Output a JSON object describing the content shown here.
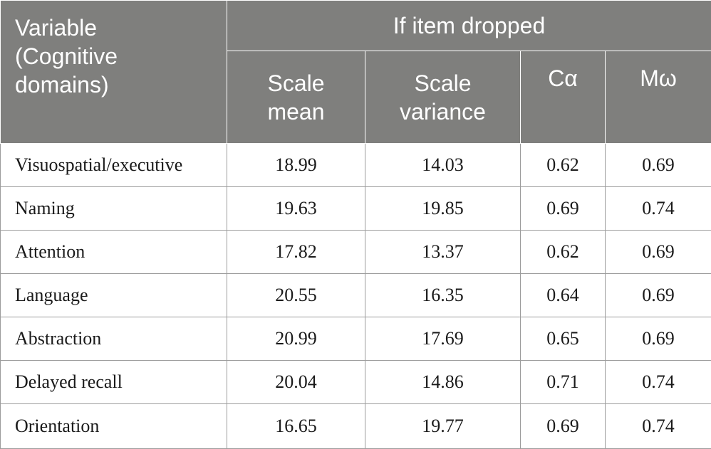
{
  "table": {
    "header": {
      "variable_line1": "Variable",
      "variable_line2": "(Cognitive",
      "variable_line3": "domains)",
      "group": "If item dropped",
      "scale_mean_line1": "Scale",
      "scale_mean_line2": "mean",
      "scale_variance_line1": "Scale",
      "scale_variance_line2": "variance",
      "c_alpha": "Cα",
      "m_omega": "Mω"
    },
    "rows": [
      {
        "variable": "Visuospatial/executive",
        "scale_mean": "18.99",
        "scale_variance": "14.03",
        "c_alpha": "0.62",
        "m_omega": "0.69"
      },
      {
        "variable": "Naming",
        "scale_mean": "19.63",
        "scale_variance": "19.85",
        "c_alpha": "0.69",
        "m_omega": "0.74"
      },
      {
        "variable": "Attention",
        "scale_mean": "17.82",
        "scale_variance": "13.37",
        "c_alpha": "0.62",
        "m_omega": "0.69"
      },
      {
        "variable": "Language",
        "scale_mean": "20.55",
        "scale_variance": "16.35",
        "c_alpha": "0.64",
        "m_omega": "0.69"
      },
      {
        "variable": "Abstraction",
        "scale_mean": "20.99",
        "scale_variance": "17.69",
        "c_alpha": "0.65",
        "m_omega": "0.69"
      },
      {
        "variable": "Delayed recall",
        "scale_mean": "20.04",
        "scale_variance": "14.86",
        "c_alpha": "0.71",
        "m_omega": "0.74"
      },
      {
        "variable": "Orientation",
        "scale_mean": "16.65",
        "scale_variance": "19.77",
        "c_alpha": "0.69",
        "m_omega": "0.74"
      }
    ]
  }
}
